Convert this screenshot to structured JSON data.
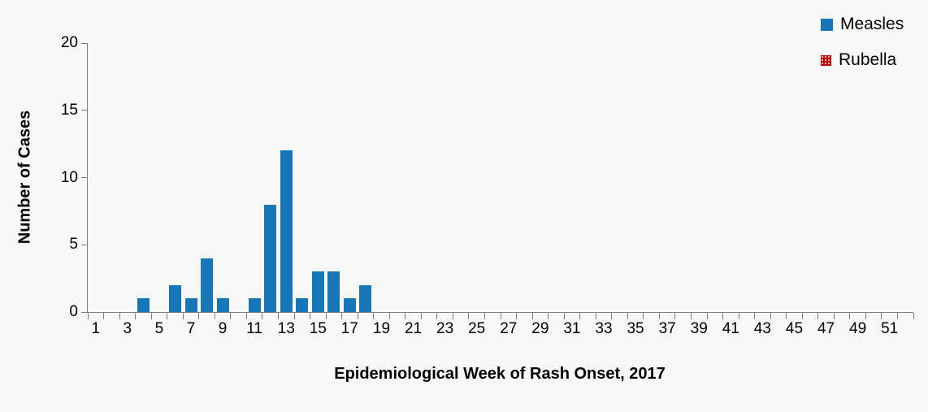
{
  "chart_data": {
    "type": "bar",
    "title": "",
    "xlabel": "Epidemiological Week of Rash Onset, 2017",
    "ylabel": "Number of Cases",
    "grid": false,
    "legend_position": "top-right",
    "x_axis": {
      "categories": [
        1,
        2,
        3,
        4,
        5,
        6,
        7,
        8,
        9,
        10,
        11,
        12,
        13,
        14,
        15,
        16,
        17,
        18,
        19,
        20,
        21,
        22,
        23,
        24,
        25,
        26,
        27,
        28,
        29,
        30,
        31,
        32,
        33,
        34,
        35,
        36,
        37,
        38,
        39,
        40,
        41,
        42,
        43,
        44,
        45,
        46,
        47,
        48,
        49,
        50,
        51,
        52
      ],
      "labeled_ticks": [
        1,
        3,
        5,
        7,
        9,
        11,
        13,
        15,
        17,
        19,
        21,
        23,
        25,
        27,
        29,
        31,
        33,
        35,
        37,
        39,
        41,
        43,
        45,
        47,
        49,
        51
      ]
    },
    "y_axis": {
      "ylim": [
        0,
        20
      ],
      "ticks": [
        0,
        5,
        10,
        15,
        20
      ]
    },
    "series": [
      {
        "name": "Measles",
        "color": "#1776B6",
        "fill": "solid",
        "values": [
          0,
          0,
          0,
          1,
          0,
          2,
          1,
          4,
          1,
          0,
          1,
          8,
          12,
          1,
          3,
          3,
          1,
          2,
          0,
          0,
          0,
          0,
          0,
          0,
          0,
          0,
          0,
          0,
          0,
          0,
          0,
          0,
          0,
          0,
          0,
          0,
          0,
          0,
          0,
          0,
          0,
          0,
          0,
          0,
          0,
          0,
          0,
          0,
          0,
          0,
          0,
          0
        ]
      },
      {
        "name": "Rubella",
        "color": "#C00000",
        "fill": "dots",
        "values": [
          0,
          0,
          0,
          0,
          0,
          0,
          0,
          0,
          0,
          0,
          0,
          0,
          0,
          0,
          0,
          0,
          0,
          0,
          0,
          0,
          0,
          0,
          0,
          0,
          0,
          0,
          0,
          0,
          0,
          0,
          0,
          0,
          0,
          0,
          0,
          0,
          0,
          0,
          0,
          0,
          0,
          0,
          0,
          0,
          0,
          0,
          0,
          0,
          0,
          0,
          0,
          0
        ]
      }
    ]
  },
  "colors": {
    "background": "#F8F8F8",
    "axis": "#808080",
    "text": "#000000",
    "measles": "#1776B6",
    "rubella": "#C00000"
  }
}
